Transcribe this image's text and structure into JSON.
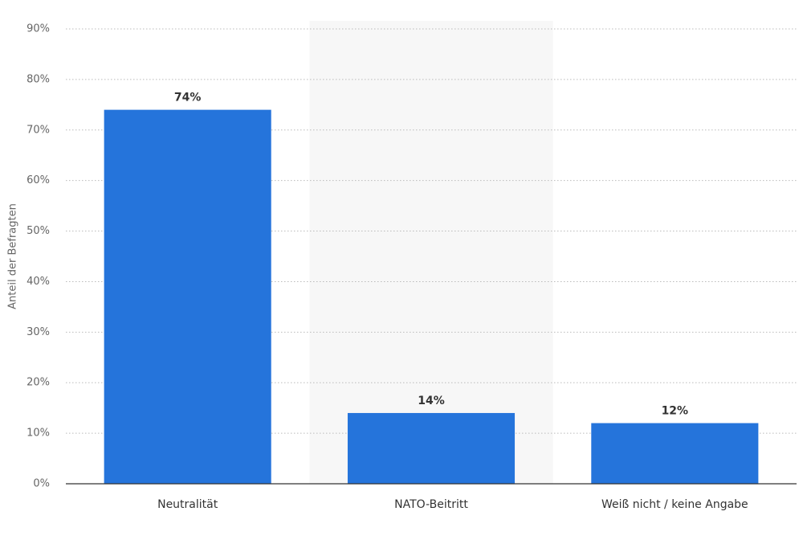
{
  "chart_data": {
    "type": "bar",
    "y_label": "Anteil der Befragten",
    "categories": [
      "Neutralität",
      "NATO-Beitritt",
      "Weiß nicht / keine Angabe"
    ],
    "values": [
      74,
      14,
      12
    ],
    "value_labels": [
      "74%",
      "14%",
      "12%"
    ],
    "color": "#2574db",
    "ylim": [
      0,
      90
    ],
    "yticks": [
      {
        "value": 0,
        "label": "0%"
      },
      {
        "value": 10,
        "label": "10%"
      },
      {
        "value": 20,
        "label": "20%"
      },
      {
        "value": 30,
        "label": "30%"
      },
      {
        "value": 40,
        "label": "40%"
      },
      {
        "value": 50,
        "label": "50%"
      },
      {
        "value": 60,
        "label": "60%"
      },
      {
        "value": 70,
        "label": "70%"
      },
      {
        "value": 80,
        "label": "80%"
      },
      {
        "value": 90,
        "label": "90%"
      }
    ],
    "grid": true
  }
}
